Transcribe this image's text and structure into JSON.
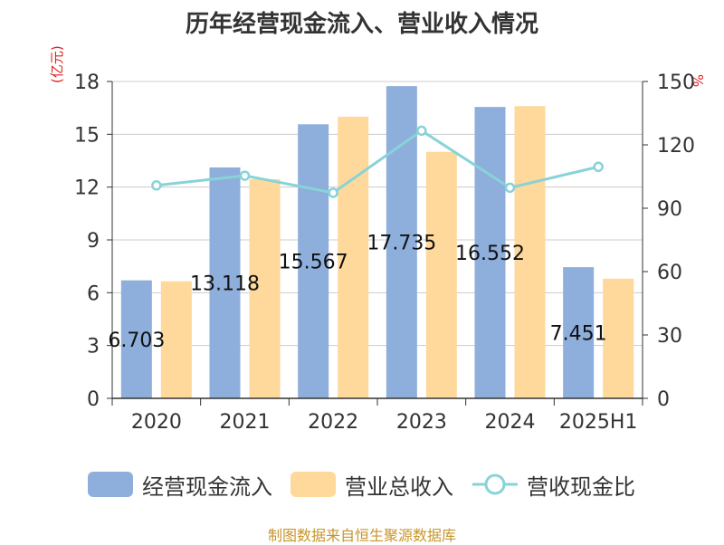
{
  "page": {
    "title": "历年经营现金流入、营业收入情况",
    "unit_left": "(亿元)",
    "unit_right": "%",
    "source": "制图数据来自恒生聚源数据库"
  },
  "legend": [
    {
      "label": "经营现金流入",
      "color": "#8eaedb",
      "kind": "bar"
    },
    {
      "label": "营业总收入",
      "color": "#fed99b",
      "kind": "bar"
    },
    {
      "label": "营收现金比",
      "color": "#88d3d8",
      "kind": "line"
    }
  ],
  "chart_data": {
    "type": "bar",
    "categories": [
      "2020",
      "2021",
      "2022",
      "2023",
      "2024",
      "2025H1"
    ],
    "series": [
      {
        "name": "经营现金流入",
        "values": [
          6.703,
          13.118,
          15.567,
          17.735,
          16.552,
          7.451
        ],
        "color": "#8eaedb",
        "axis": "left"
      },
      {
        "name": "营业总收入",
        "values": [
          6.65,
          12.45,
          16.0,
          14.0,
          16.6,
          6.8
        ],
        "color": "#fed99b",
        "axis": "left"
      },
      {
        "name": "营收现金比",
        "type": "line",
        "values": [
          100.8,
          105.4,
          97.3,
          126.7,
          99.7,
          109.6
        ],
        "color": "#88d3d8",
        "axis": "right"
      }
    ],
    "data_labels": [
      "6.703",
      "13.118",
      "15.567",
      "17.735",
      "16.552",
      "7.451"
    ],
    "ylim_left": [
      0,
      18
    ],
    "yticks_left": [
      "0",
      "3",
      "6",
      "9",
      "12",
      "15",
      "18"
    ],
    "ylim_right": [
      0,
      150
    ],
    "yticks_right": [
      "0",
      "30",
      "60",
      "90",
      "120",
      "150"
    ],
    "grid": true,
    "legend_position": "bottom"
  }
}
